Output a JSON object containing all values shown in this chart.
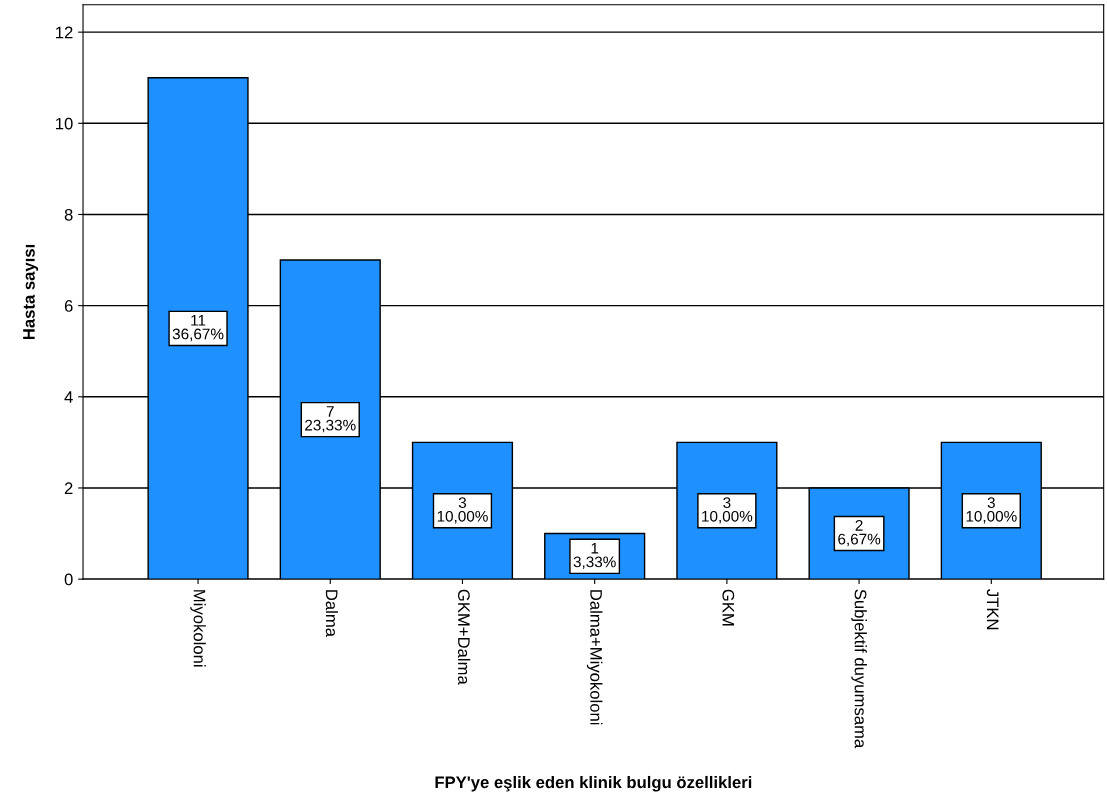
{
  "chart_data": {
    "type": "bar",
    "xlabel": "FPY'ye eşlik eden klinik bulgu özellikleri",
    "ylabel": "Hasta sayısı",
    "categories": [
      "Miyokoloni",
      "Dalma",
      "GKM+Dalma",
      "Dalma+Miyokoloni",
      "GKM",
      "Subjektif duyumsama",
      "JTKN"
    ],
    "values": [
      11,
      7,
      3,
      1,
      3,
      2,
      3
    ],
    "value_labels": [
      "11\n36,67%",
      "7\n23,33%",
      "3\n10,00%",
      "1\n3,33%",
      "3\n10,00%",
      "2\n6,67%",
      "3\n10,00%"
    ],
    "color": "#1e90ff",
    "ylim": [
      0,
      12.6
    ],
    "yticks": [
      0,
      2,
      4,
      6,
      8,
      10,
      12
    ],
    "grid": "y"
  }
}
